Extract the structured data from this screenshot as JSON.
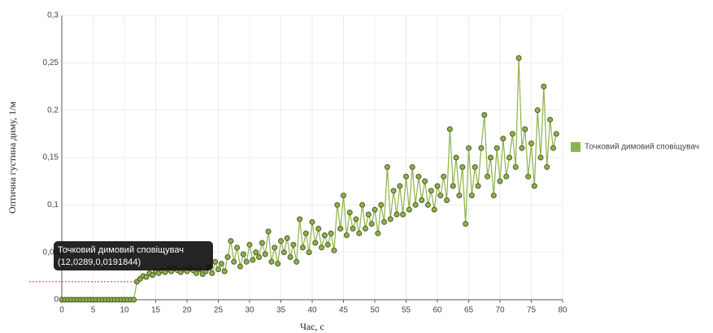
{
  "chart_data": {
    "type": "line",
    "ylabel": "Оптична густина диму, 1/м",
    "xlabel": "Час, с",
    "xlim": [
      0,
      80
    ],
    "xticks": [
      0,
      5,
      10,
      15,
      20,
      25,
      30,
      35,
      40,
      45,
      50,
      55,
      60,
      65,
      70,
      75,
      80
    ],
    "ylim": [
      0,
      0.3
    ],
    "yticks": [
      0,
      {
        "value": 0.05,
        "label": "0,05"
      },
      {
        "value": 0.1,
        "label": "0,1"
      },
      {
        "value": 0.15,
        "label": "0,15"
      },
      {
        "value": 0.2,
        "label": "0,2"
      },
      {
        "value": 0.25,
        "label": "0,25"
      },
      {
        "value": 0.3,
        "label": "0,3"
      }
    ],
    "grid": true,
    "legend": "right",
    "x": [
      0,
      0.5,
      1,
      1.5,
      2,
      2.5,
      3,
      3.5,
      4,
      4.5,
      5,
      5.5,
      6,
      6.5,
      7,
      7.5,
      8,
      8.5,
      9,
      9.5,
      10,
      10.5,
      11,
      11.5,
      12,
      12.5,
      13,
      13.5,
      14,
      14.5,
      15,
      15.5,
      16,
      16.5,
      17,
      17.5,
      18,
      18.5,
      19,
      19.5,
      20,
      20.5,
      21,
      21.5,
      22,
      22.5,
      23,
      23.5,
      24,
      24.5,
      25,
      25.5,
      26,
      26.5,
      27,
      27.5,
      28,
      28.5,
      29,
      29.5,
      30,
      30.5,
      31,
      31.5,
      32,
      32.5,
      33,
      33.5,
      34,
      34.5,
      35,
      35.5,
      36,
      36.5,
      37,
      37.5,
      38,
      38.5,
      39,
      39.5,
      40,
      40.5,
      41,
      41.5,
      42,
      42.5,
      43,
      43.5,
      44,
      44.5,
      45,
      45.5,
      46,
      46.5,
      47,
      47.5,
      48,
      48.5,
      49,
      49.5,
      50,
      50.5,
      51,
      51.5,
      52,
      52.5,
      53,
      53.5,
      54,
      54.5,
      55,
      55.5,
      56,
      56.5,
      57,
      57.5,
      58,
      58.5,
      59,
      59.5,
      60,
      60.5,
      61,
      61.5,
      62,
      62.5,
      63,
      63.5,
      64,
      64.5,
      65,
      65.5,
      66,
      66.5,
      67,
      67.5,
      68,
      68.5,
      69,
      69.5,
      70,
      70.5,
      71,
      71.5,
      72,
      72.5,
      73,
      73.5,
      74,
      74.5,
      75,
      75.5,
      76,
      76.5,
      77,
      77.5,
      78,
      78.5,
      79
    ],
    "series": [
      {
        "name": "Точковий димовий сповіщувач",
        "color": "#8db348",
        "values": [
          0,
          0,
          0,
          0,
          0,
          0,
          0,
          0,
          0,
          0,
          0,
          0,
          0,
          0,
          0,
          0,
          0,
          0,
          0,
          0,
          0,
          0,
          0,
          0,
          0.019,
          0.022,
          0.025,
          0.024,
          0.028,
          0.026,
          0.03,
          0.028,
          0.031,
          0.029,
          0.032,
          0.03,
          0.033,
          0.031,
          0.029,
          0.032,
          0.03,
          0.033,
          0.031,
          0.028,
          0.032,
          0.027,
          0.03,
          0.035,
          0.028,
          0.04,
          0.032,
          0.038,
          0.03,
          0.045,
          0.062,
          0.04,
          0.055,
          0.035,
          0.048,
          0.04,
          0.058,
          0.042,
          0.05,
          0.045,
          0.06,
          0.048,
          0.072,
          0.04,
          0.055,
          0.038,
          0.062,
          0.05,
          0.065,
          0.045,
          0.058,
          0.04,
          0.085,
          0.055,
          0.07,
          0.05,
          0.082,
          0.06,
          0.075,
          0.055,
          0.068,
          0.058,
          0.07,
          0.052,
          0.1,
          0.075,
          0.11,
          0.068,
          0.092,
          0.075,
          0.085,
          0.07,
          0.1,
          0.075,
          0.09,
          0.08,
          0.095,
          0.07,
          0.1,
          0.082,
          0.14,
          0.085,
          0.115,
          0.09,
          0.12,
          0.09,
          0.13,
          0.095,
          0.14,
          0.1,
          0.13,
          0.105,
          0.125,
          0.1,
          0.115,
          0.095,
          0.12,
          0.11,
          0.13,
          0.105,
          0.18,
          0.12,
          0.15,
          0.11,
          0.14,
          0.08,
          0.16,
          0.11,
          0.14,
          0.12,
          0.16,
          0.195,
          0.13,
          0.15,
          0.11,
          0.16,
          0.125,
          0.17,
          0.13,
          0.15,
          0.175,
          0.14,
          0.255,
          0.16,
          0.18,
          0.13,
          0.165,
          0.12,
          0.2,
          0.15,
          0.225,
          0.14,
          0.19,
          0.16,
          0.175
        ]
      }
    ],
    "tooltip": {
      "title": "Точковий димовий сповіщувач",
      "text": "(12,0289,0,0191844)"
    }
  }
}
